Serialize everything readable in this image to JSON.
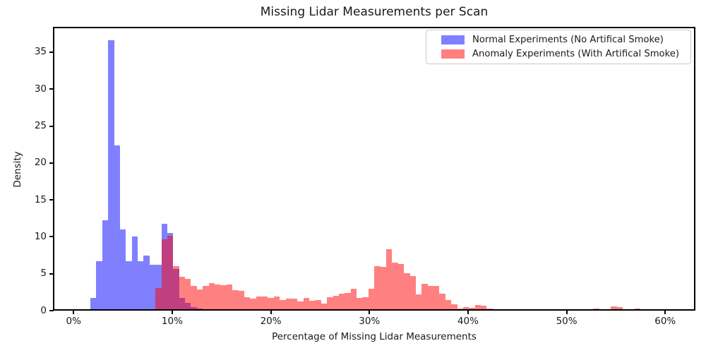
{
  "title": "Missing Lidar Measurements per Scan",
  "chart_data": {
    "type": "histogram",
    "title": "Missing Lidar Measurements per Scan",
    "xlabel": "Percentage of Missing Lidar Measurements",
    "ylabel": "Density",
    "xlim": [
      -2.06,
      63.06
    ],
    "ylim": [
      0,
      38.44
    ],
    "grid": false,
    "legend_position": "upper right",
    "x_ticks": [
      {
        "value": 0,
        "label": "0%"
      },
      {
        "value": 10,
        "label": "10%"
      },
      {
        "value": 20,
        "label": "20%"
      },
      {
        "value": 30,
        "label": "30%"
      },
      {
        "value": 40,
        "label": "40%"
      },
      {
        "value": 50,
        "label": "50%"
      },
      {
        "value": 60,
        "label": "60%"
      }
    ],
    "y_ticks": [
      {
        "value": 0,
        "label": "0"
      },
      {
        "value": 5,
        "label": "5"
      },
      {
        "value": 10,
        "label": "10"
      },
      {
        "value": 15,
        "label": "15"
      },
      {
        "value": 20,
        "label": "20"
      },
      {
        "value": 25,
        "label": "25"
      },
      {
        "value": 30,
        "label": "30"
      },
      {
        "value": 35,
        "label": "35"
      }
    ],
    "bin_width_pct": 0.6,
    "overlap_color": "#BF4080",
    "series": [
      {
        "name": "Normal Experiments (No Artifical Smoke)",
        "color": "#8080FF",
        "bin_start_pct": 1.7,
        "densities": [
          1.7,
          6.65,
          12.2,
          36.6,
          22.4,
          11.0,
          6.65,
          10.0,
          6.65,
          7.45,
          6.25,
          6.25,
          11.8,
          10.5,
          5.6,
          1.7,
          1.05,
          0.45,
          0.3,
          0.2,
          0.15,
          0.12,
          0.1,
          0.08
        ]
      },
      {
        "name": "Anomaly Experiments (With Artifical Smoke)",
        "color": "#FF8080",
        "bin_start_pct": 8.3,
        "densities": [
          3.1,
          9.7,
          10.1,
          6.0,
          4.6,
          4.3,
          3.3,
          2.9,
          3.3,
          3.7,
          3.5,
          3.4,
          3.5,
          2.8,
          2.7,
          1.8,
          1.6,
          1.9,
          1.9,
          1.7,
          1.9,
          1.4,
          1.6,
          1.6,
          1.2,
          1.7,
          1.3,
          1.4,
          1.0,
          1.8,
          2.0,
          2.3,
          2.4,
          3.0,
          1.7,
          1.8,
          3.0,
          6.0,
          5.9,
          8.3,
          6.5,
          6.3,
          5.1,
          4.7,
          2.2,
          3.6,
          3.3,
          3.3,
          2.3,
          1.4,
          0.9,
          0.3,
          0.5,
          0.4,
          0.8,
          0.7,
          0.3,
          0.15,
          0,
          0,
          0,
          0.15,
          0,
          0,
          0,
          0,
          0,
          0.1,
          0,
          0,
          0,
          0,
          0.2,
          0.2,
          0.25,
          0.15,
          0,
          0.55,
          0.45,
          0.15,
          0.15,
          0.3,
          0.15,
          0,
          0,
          0.1,
          0.2
        ]
      }
    ]
  }
}
